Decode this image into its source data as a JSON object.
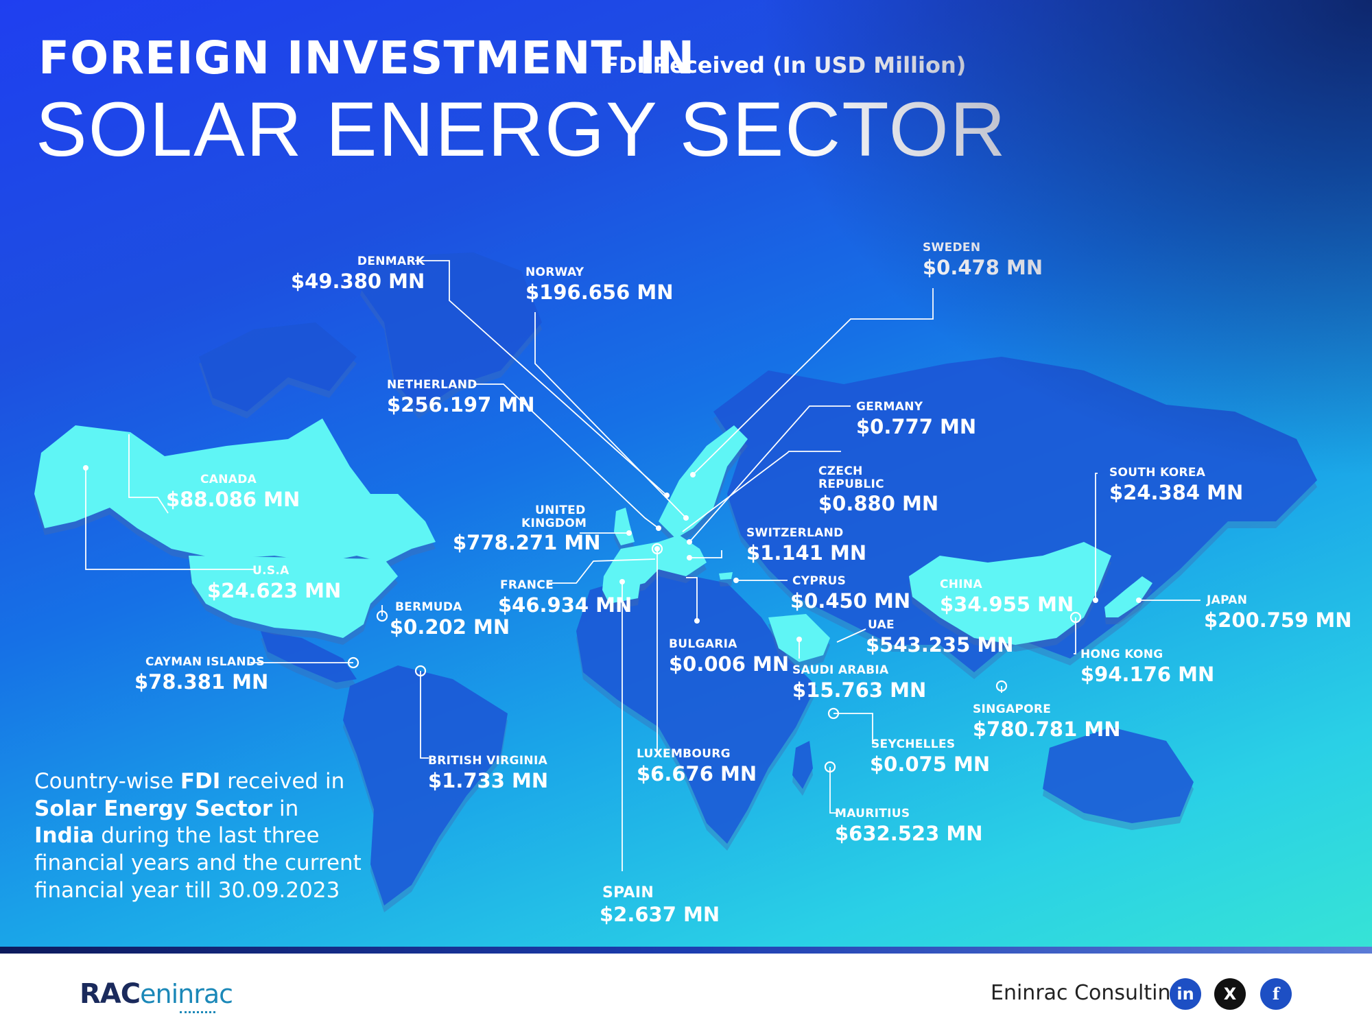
{
  "header": {
    "title_line1": "FOREIGN INVESTMENT IN",
    "subtitle": "FDI Received (In USD Million)",
    "title_line2": "SOLAR ENERGY SECTOR"
  },
  "colors": {
    "background_top": "#1f3ff0",
    "background_bottom": "#36e3d6",
    "highlight_land": "#5ff5f5",
    "footer_bg": "#ffffff"
  },
  "countries": [
    {
      "key": "denmark",
      "name": "DENMARK",
      "value": "$49.380 MN"
    },
    {
      "key": "norway",
      "name": "NORWAY",
      "value": "$196.656 MN"
    },
    {
      "key": "sweden",
      "name": "SWEDEN",
      "value": "$0.478 MN"
    },
    {
      "key": "netherland",
      "name": "NETHERLAND",
      "value": "$256.197 MN"
    },
    {
      "key": "germany",
      "name": "GERMANY",
      "value": "$0.777 MN"
    },
    {
      "key": "canada",
      "name": "CANADA",
      "value": "$88.086 MN"
    },
    {
      "key": "czech",
      "name": "CZECH",
      "name2": "REPUBLIC",
      "value": "$0.880 MN"
    },
    {
      "key": "south_korea",
      "name": "SOUTH KOREA",
      "value": "$24.384 MN"
    },
    {
      "key": "uk",
      "name": "UNITED",
      "name2": "KINGDOM",
      "value": "$778.271 MN"
    },
    {
      "key": "switzerland",
      "name": "SWITZERLAND",
      "value": "$1.141 MN"
    },
    {
      "key": "usa",
      "name": "U.S.A",
      "value": "$24.623 MN"
    },
    {
      "key": "france",
      "name": "FRANCE",
      "value": "$46.934 MN"
    },
    {
      "key": "cyprus",
      "name": "CYPRUS",
      "value": "$0.450 MN"
    },
    {
      "key": "china",
      "name": "CHINA",
      "value": "$34.955 MN"
    },
    {
      "key": "japan",
      "name": "JAPAN",
      "value": "$200.759 MN"
    },
    {
      "key": "bermuda",
      "name": "BERMUDA",
      "value": "$0.202 MN"
    },
    {
      "key": "uae",
      "name": "UAE",
      "value": "$543.235 MN"
    },
    {
      "key": "bulgaria",
      "name": "BULGARIA",
      "value": "$0.006 MN"
    },
    {
      "key": "hong_kong",
      "name": "HONG KONG",
      "value": "$94.176 MN"
    },
    {
      "key": "cayman",
      "name": "CAYMAN ISLANDS",
      "value": "$78.381 MN"
    },
    {
      "key": "saudi",
      "name": "SAUDI ARABIA",
      "value": "$15.763 MN"
    },
    {
      "key": "singapore",
      "name": "SINGAPORE",
      "value": "$780.781 MN"
    },
    {
      "key": "seychelles",
      "name": "SEYCHELLES",
      "value": "$0.075 MN"
    },
    {
      "key": "luxembourg",
      "name": "LUXEMBOURG",
      "value": "$6.676 MN"
    },
    {
      "key": "bvi",
      "name": "BRITISH VIRGINIA",
      "value": "$1.733 MN"
    },
    {
      "key": "mauritius",
      "name": "MAURITIUS",
      "value": "$632.523 MN"
    },
    {
      "key": "spain",
      "name": "SPAIN",
      "value": "$2.637 MN"
    }
  ],
  "caption": {
    "p1": "Country-wise ",
    "b1": "FDI",
    "p2": " received in ",
    "b2": "Solar Energy Sector",
    "p3": " in ",
    "b3": "India",
    "p4": " during the last three financial years and the current financial year till 30.09.2023"
  },
  "footer": {
    "logo_part1": "RAC",
    "logo_part2": "eninrac",
    "company": "Eninrac Consulting",
    "social": [
      {
        "icon": "linkedin-icon",
        "glyph": "in",
        "color": "#1d4fc4"
      },
      {
        "icon": "x-icon",
        "glyph": "X",
        "color": "#111111"
      },
      {
        "icon": "facebook-icon",
        "glyph": "f",
        "color": "#1d4fc4"
      }
    ]
  }
}
